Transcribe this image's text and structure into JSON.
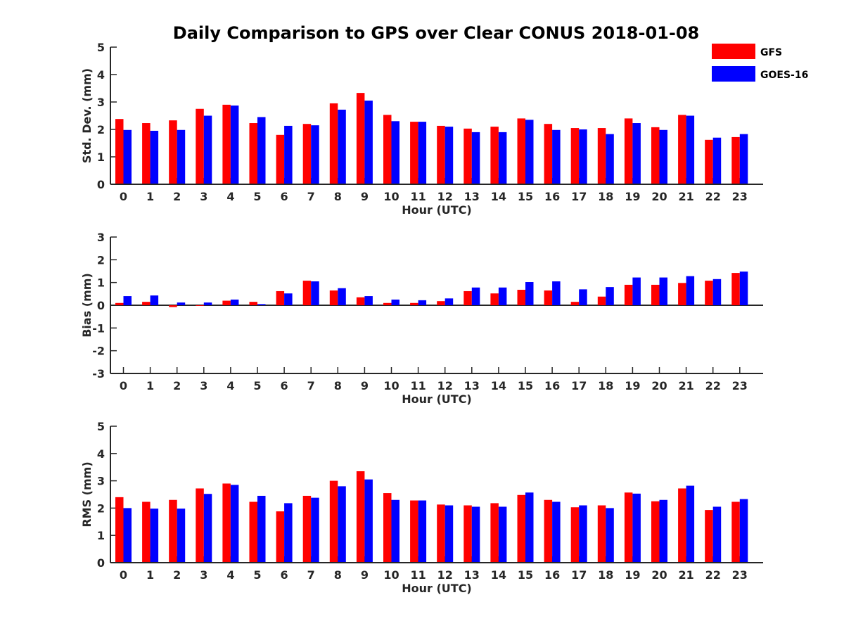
{
  "title": "Daily Comparison to GPS over Clear CONUS 2018-01-08",
  "legend": [
    {
      "name": "GFS",
      "color": "#ff0000"
    },
    {
      "name": "GOES-16",
      "color": "#0000ff"
    }
  ],
  "chart_data": [
    {
      "type": "bar",
      "ylabel": "Std. Dev. (mm)",
      "xlabel": "Hour (UTC)",
      "ylim": [
        0,
        5
      ],
      "yticks": [
        "0",
        "1",
        "2",
        "3",
        "4",
        "5"
      ],
      "categories": [
        "0",
        "1",
        "2",
        "3",
        "4",
        "5",
        "6",
        "7",
        "8",
        "9",
        "10",
        "11",
        "12",
        "13",
        "14",
        "15",
        "16",
        "17",
        "18",
        "19",
        "20",
        "21",
        "22",
        "23"
      ],
      "series": [
        {
          "name": "GFS",
          "values": [
            2.38,
            2.23,
            2.33,
            2.75,
            2.9,
            2.23,
            1.8,
            2.2,
            2.95,
            3.33,
            2.53,
            2.28,
            2.13,
            2.03,
            2.1,
            2.4,
            2.2,
            2.05,
            2.05,
            2.4,
            2.08,
            2.53,
            1.62,
            1.72
          ]
        },
        {
          "name": "GOES-16",
          "values": [
            1.98,
            1.95,
            1.98,
            2.5,
            2.87,
            2.45,
            2.13,
            2.15,
            2.72,
            3.05,
            2.3,
            2.28,
            2.1,
            1.9,
            1.9,
            2.35,
            1.98,
            2.0,
            1.83,
            2.23,
            1.98,
            2.5,
            1.7,
            1.83
          ]
        }
      ]
    },
    {
      "type": "bar",
      "ylabel": "Bias (mm)",
      "xlabel": "Hour (UTC)",
      "ylim": [
        -3,
        3
      ],
      "yticks": [
        "-3",
        "-2",
        "-1",
        "0",
        "1",
        "2",
        "3"
      ],
      "categories": [
        "0",
        "1",
        "2",
        "3",
        "4",
        "5",
        "6",
        "7",
        "8",
        "9",
        "10",
        "11",
        "12",
        "13",
        "14",
        "15",
        "16",
        "17",
        "18",
        "19",
        "20",
        "21",
        "22",
        "23"
      ],
      "series": [
        {
          "name": "GFS",
          "values": [
            0.1,
            0.15,
            -0.08,
            -0.03,
            0.2,
            0.15,
            0.62,
            1.08,
            0.65,
            0.35,
            0.1,
            0.1,
            0.18,
            0.62,
            0.52,
            0.68,
            0.65,
            0.15,
            0.38,
            0.9,
            0.9,
            0.98,
            1.08,
            1.42
          ]
        },
        {
          "name": "GOES-16",
          "values": [
            0.4,
            0.43,
            0.12,
            0.12,
            0.25,
            0.05,
            0.52,
            1.05,
            0.75,
            0.4,
            0.25,
            0.22,
            0.3,
            0.78,
            0.78,
            1.02,
            1.05,
            0.7,
            0.8,
            1.22,
            1.22,
            1.28,
            1.15,
            1.48
          ]
        }
      ]
    },
    {
      "type": "bar",
      "ylabel": "RMS (mm)",
      "xlabel": "Hour (UTC)",
      "ylim": [
        0,
        5
      ],
      "yticks": [
        "0",
        "1",
        "2",
        "3",
        "4",
        "5"
      ],
      "categories": [
        "0",
        "1",
        "2",
        "3",
        "4",
        "5",
        "6",
        "7",
        "8",
        "9",
        "10",
        "11",
        "12",
        "13",
        "14",
        "15",
        "16",
        "17",
        "18",
        "19",
        "20",
        "21",
        "22",
        "23"
      ],
      "series": [
        {
          "name": "GFS",
          "values": [
            2.4,
            2.23,
            2.3,
            2.72,
            2.9,
            2.23,
            1.88,
            2.45,
            3.0,
            3.35,
            2.55,
            2.28,
            2.13,
            2.1,
            2.18,
            2.48,
            2.3,
            2.03,
            2.1,
            2.57,
            2.25,
            2.72,
            1.93,
            2.23
          ]
        },
        {
          "name": "GOES-16",
          "values": [
            2.0,
            1.98,
            1.98,
            2.52,
            2.85,
            2.45,
            2.18,
            2.38,
            2.8,
            3.05,
            2.3,
            2.28,
            2.1,
            2.05,
            2.05,
            2.57,
            2.23,
            2.1,
            2.0,
            2.53,
            2.3,
            2.82,
            2.05,
            2.33
          ]
        }
      ]
    }
  ]
}
